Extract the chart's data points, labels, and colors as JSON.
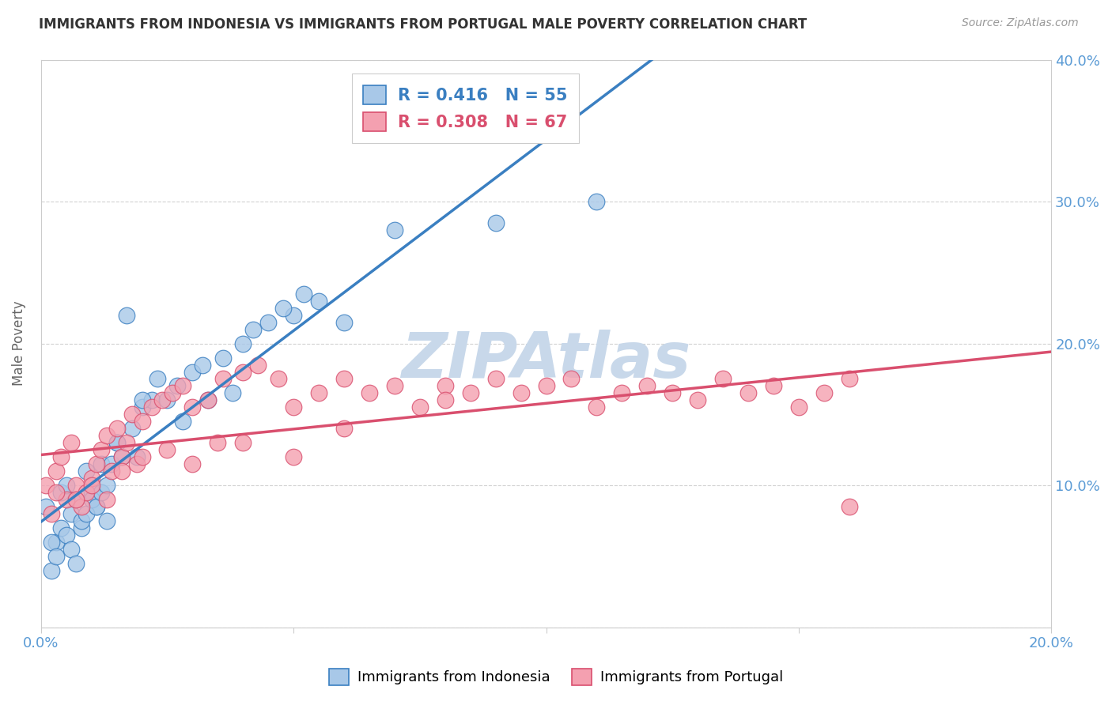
{
  "title": "IMMIGRANTS FROM INDONESIA VS IMMIGRANTS FROM PORTUGAL MALE POVERTY CORRELATION CHART",
  "source": "Source: ZipAtlas.com",
  "ylabel": "Male Poverty",
  "xlim": [
    0.0,
    0.2
  ],
  "ylim": [
    0.0,
    0.4
  ],
  "xticks": [
    0.0,
    0.05,
    0.1,
    0.15,
    0.2
  ],
  "yticks": [
    0.0,
    0.1,
    0.2,
    0.3,
    0.4
  ],
  "background_color": "#ffffff",
  "grid_color": "#cccccc",
  "indonesia_color": "#a8c8e8",
  "portugal_color": "#f4a0b0",
  "indonesia_line_color": "#3a7fc1",
  "portugal_line_color": "#d94f6e",
  "watermark_color": "#c8d8ea",
  "indonesia_scatter_x": [
    0.001,
    0.002,
    0.003,
    0.004,
    0.005,
    0.006,
    0.007,
    0.008,
    0.009,
    0.01,
    0.011,
    0.012,
    0.013,
    0.014,
    0.015,
    0.016,
    0.018,
    0.019,
    0.02,
    0.022,
    0.025,
    0.027,
    0.03,
    0.033,
    0.036,
    0.04,
    0.045,
    0.05,
    0.055,
    0.06,
    0.002,
    0.003,
    0.004,
    0.005,
    0.006,
    0.007,
    0.008,
    0.009,
    0.01,
    0.011,
    0.012,
    0.013,
    0.015,
    0.017,
    0.02,
    0.023,
    0.028,
    0.032,
    0.038,
    0.042,
    0.048,
    0.052,
    0.07,
    0.09,
    0.11
  ],
  "indonesia_scatter_y": [
    0.085,
    0.04,
    0.06,
    0.095,
    0.1,
    0.08,
    0.09,
    0.07,
    0.11,
    0.095,
    0.085,
    0.115,
    0.075,
    0.115,
    0.13,
    0.12,
    0.14,
    0.12,
    0.155,
    0.16,
    0.16,
    0.17,
    0.18,
    0.16,
    0.19,
    0.2,
    0.215,
    0.22,
    0.23,
    0.215,
    0.06,
    0.05,
    0.07,
    0.065,
    0.055,
    0.045,
    0.075,
    0.08,
    0.09,
    0.085,
    0.095,
    0.1,
    0.13,
    0.22,
    0.16,
    0.175,
    0.145,
    0.185,
    0.165,
    0.21,
    0.225,
    0.235,
    0.28,
    0.285,
    0.3
  ],
  "portugal_scatter_x": [
    0.001,
    0.002,
    0.003,
    0.004,
    0.005,
    0.006,
    0.007,
    0.008,
    0.009,
    0.01,
    0.011,
    0.012,
    0.013,
    0.014,
    0.015,
    0.016,
    0.017,
    0.018,
    0.019,
    0.02,
    0.022,
    0.024,
    0.026,
    0.028,
    0.03,
    0.033,
    0.036,
    0.04,
    0.043,
    0.047,
    0.05,
    0.055,
    0.06,
    0.065,
    0.07,
    0.075,
    0.08,
    0.085,
    0.09,
    0.095,
    0.1,
    0.105,
    0.11,
    0.115,
    0.12,
    0.125,
    0.13,
    0.135,
    0.14,
    0.145,
    0.15,
    0.155,
    0.16,
    0.003,
    0.007,
    0.01,
    0.013,
    0.016,
    0.02,
    0.025,
    0.03,
    0.035,
    0.04,
    0.05,
    0.06,
    0.08,
    0.16
  ],
  "portugal_scatter_y": [
    0.1,
    0.08,
    0.11,
    0.12,
    0.09,
    0.13,
    0.1,
    0.085,
    0.095,
    0.105,
    0.115,
    0.125,
    0.135,
    0.11,
    0.14,
    0.12,
    0.13,
    0.15,
    0.115,
    0.145,
    0.155,
    0.16,
    0.165,
    0.17,
    0.155,
    0.16,
    0.175,
    0.18,
    0.185,
    0.175,
    0.155,
    0.165,
    0.175,
    0.165,
    0.17,
    0.155,
    0.17,
    0.165,
    0.175,
    0.165,
    0.17,
    0.175,
    0.155,
    0.165,
    0.17,
    0.165,
    0.16,
    0.175,
    0.165,
    0.17,
    0.155,
    0.165,
    0.175,
    0.095,
    0.09,
    0.1,
    0.09,
    0.11,
    0.12,
    0.125,
    0.115,
    0.13,
    0.13,
    0.12,
    0.14,
    0.16,
    0.085
  ]
}
